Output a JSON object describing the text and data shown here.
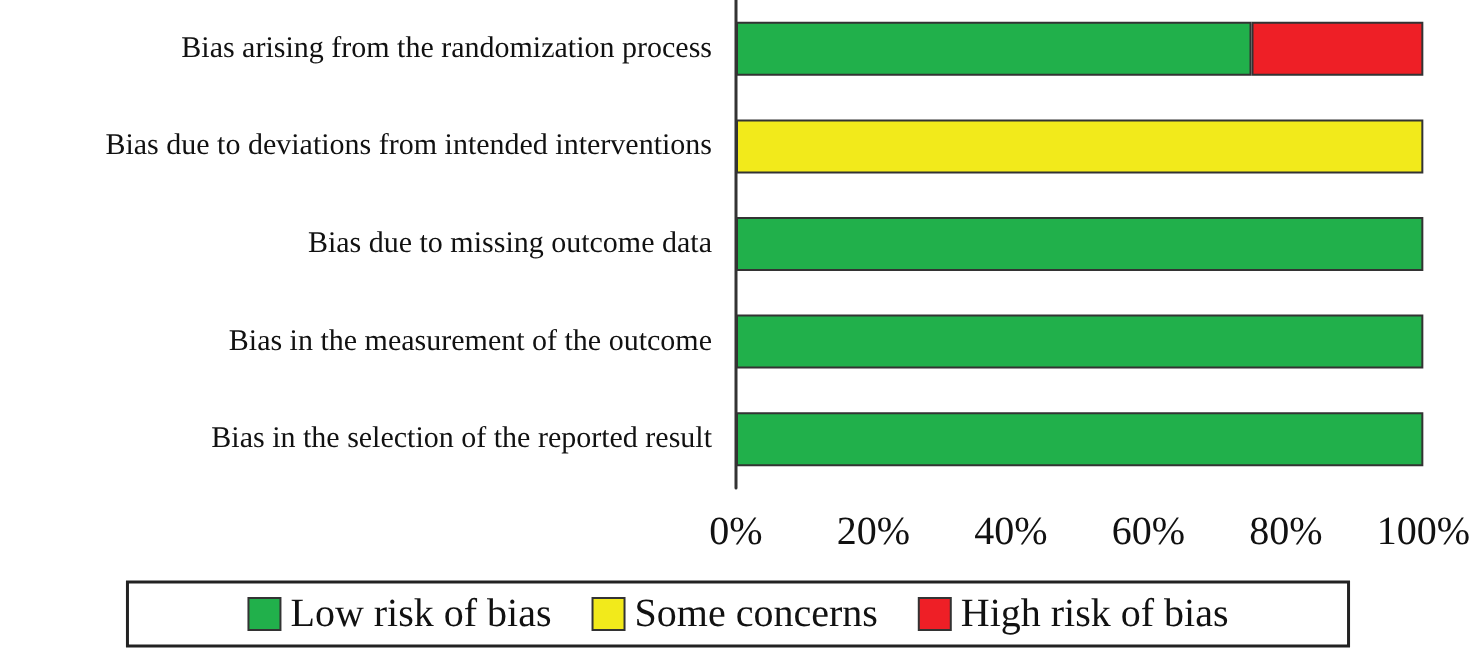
{
  "chart_data": {
    "type": "bar",
    "orientation": "horizontal",
    "stacked": true,
    "categories": [
      "Bias arising from the randomization process",
      "Bias due to deviations from intended interventions",
      "Bias due to missing outcome data",
      "Bias in the measurement of the outcome",
      "Bias in the selection of the reported result"
    ],
    "series": [
      {
        "name": "Low risk of bias",
        "color": "#21b04b",
        "values": [
          75,
          null,
          100,
          100,
          100
        ]
      },
      {
        "name": "Some concerns",
        "color": "#f2ea1b",
        "values": [
          null,
          100,
          null,
          null,
          null
        ]
      },
      {
        "name": "High risk of bias",
        "color": "#ee1f26",
        "values": [
          25,
          null,
          null,
          null,
          null
        ]
      }
    ],
    "xlim": [
      0,
      100
    ],
    "xticks": [
      {
        "value": 0,
        "label": "0%"
      },
      {
        "value": 20,
        "label": "20%"
      },
      {
        "value": 40,
        "label": "40%"
      },
      {
        "value": 60,
        "label": "60%"
      },
      {
        "value": 80,
        "label": "80%"
      },
      {
        "value": 100,
        "label": "100%"
      }
    ],
    "legend": "bottom"
  }
}
